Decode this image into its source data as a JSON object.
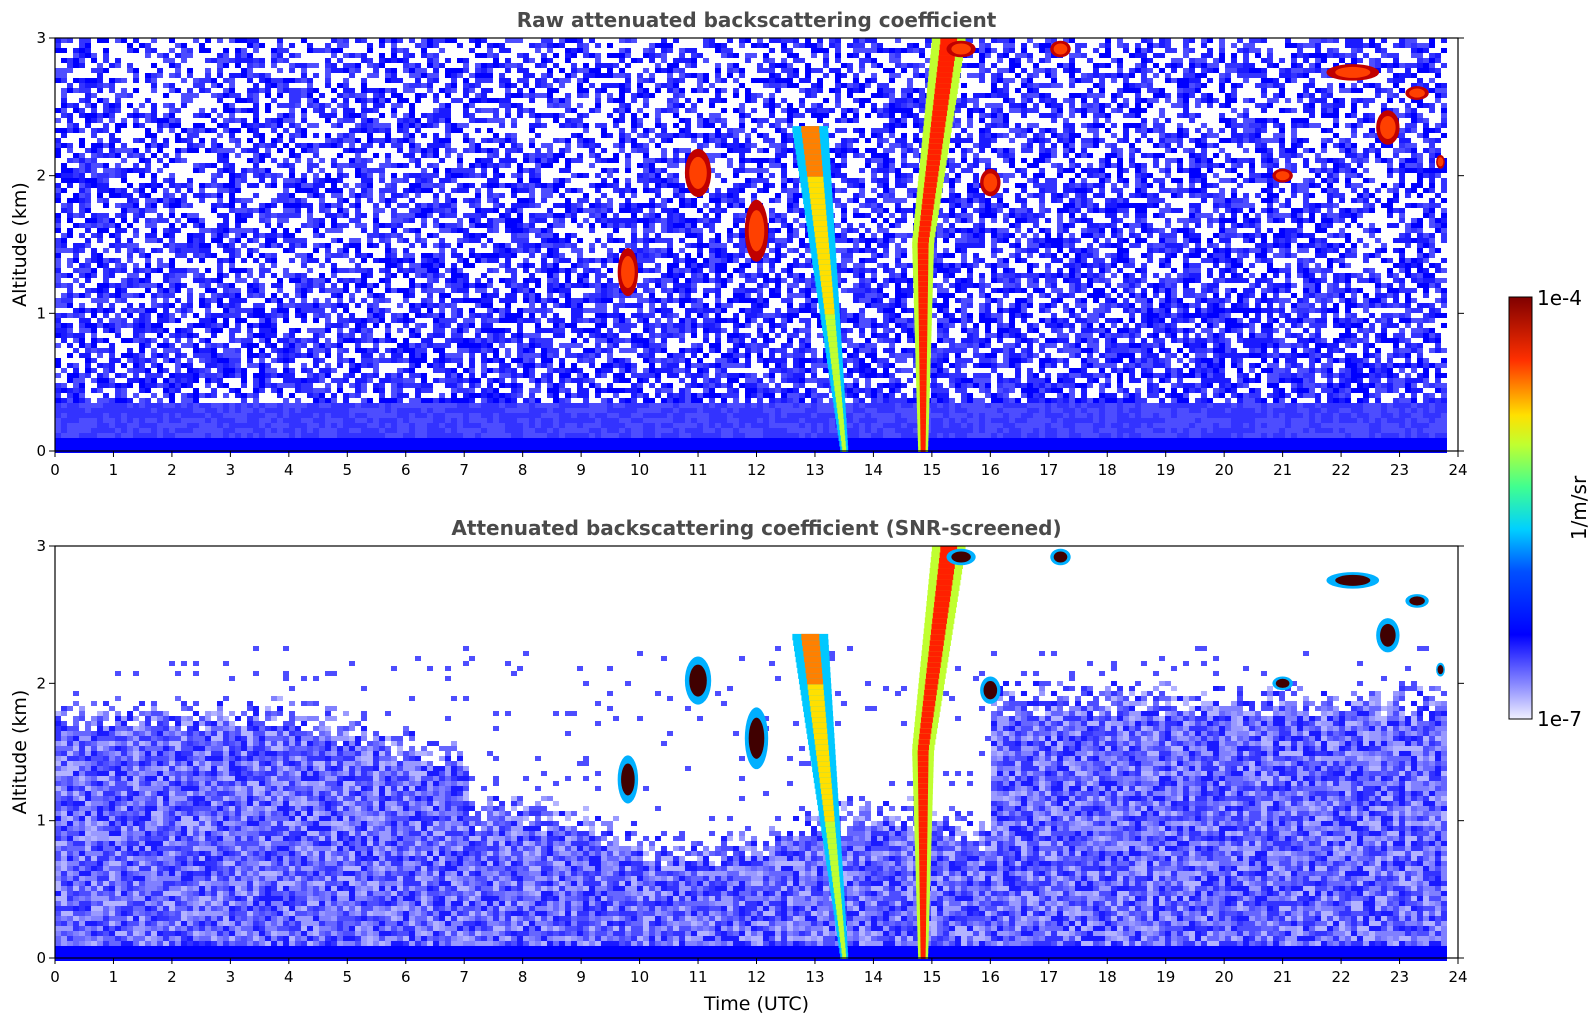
{
  "chart_data": [
    {
      "type": "heatmap",
      "title": "Raw attenuated backscattering coefficient",
      "xlabel": "",
      "ylabel": "Altitude (km)",
      "xlim": [
        0,
        24
      ],
      "ylim": [
        0,
        3
      ],
      "x_ticks": [
        "0",
        "1",
        "2",
        "3",
        "4",
        "5",
        "6",
        "7",
        "8",
        "9",
        "10",
        "11",
        "12",
        "13",
        "14",
        "15",
        "16",
        "17",
        "18",
        "19",
        "20",
        "21",
        "22",
        "23",
        "24"
      ],
      "y_ticks": [
        "0",
        "1",
        "2",
        "3"
      ],
      "screening": "none",
      "clouds": [
        {
          "t": 13.4,
          "alt_top": 2.3,
          "intensity": "high"
        },
        {
          "t": 14.9,
          "alt_top": 3.0,
          "intensity": "high"
        },
        {
          "t": 15.5,
          "alt": 2.9,
          "intensity": "high"
        },
        {
          "t": 11.0,
          "alt": 2.0,
          "intensity": "high"
        },
        {
          "t": 12.0,
          "alt": 1.6,
          "intensity": "high"
        },
        {
          "t": 9.8,
          "alt": 1.3,
          "intensity": "high"
        },
        {
          "t": 16.0,
          "alt": 1.95,
          "intensity": "high"
        },
        {
          "t": 17.2,
          "alt": 2.9,
          "intensity": "high"
        },
        {
          "t": 22.2,
          "alt": 2.75,
          "intensity": "high"
        },
        {
          "t": 22.8,
          "alt": 2.3,
          "intensity": "high"
        },
        {
          "t": 21.0,
          "alt": 2.0,
          "intensity": "high"
        }
      ]
    },
    {
      "type": "heatmap",
      "title": "Attenuated backscattering coefficient (SNR-screened)",
      "xlabel": "Time (UTC)",
      "ylabel": "Altitude (km)",
      "xlim": [
        0,
        24
      ],
      "ylim": [
        0,
        3
      ],
      "x_ticks": [
        "0",
        "1",
        "2",
        "3",
        "4",
        "5",
        "6",
        "7",
        "8",
        "9",
        "10",
        "11",
        "12",
        "13",
        "14",
        "15",
        "16",
        "17",
        "18",
        "19",
        "20",
        "21",
        "22",
        "23",
        "24"
      ],
      "y_ticks": [
        "0",
        "1",
        "2",
        "3"
      ],
      "screening": "SNR"
    }
  ],
  "colorbar": {
    "label": "1/m/sr",
    "max_label": "1e-4",
    "min_label": "1e-7",
    "colormap": "jet",
    "scale": "log"
  }
}
